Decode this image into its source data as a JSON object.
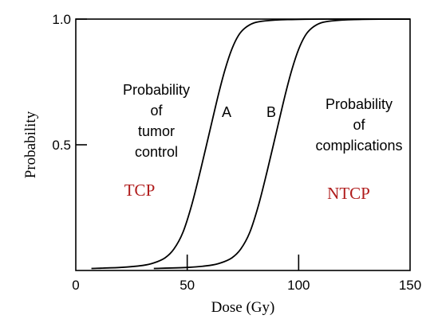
{
  "chart_data": {
    "type": "line",
    "xlabel": "Dose (Gy)",
    "ylabel": "Probability",
    "xlim": [
      0,
      150
    ],
    "ylim": [
      0,
      1.0
    ],
    "x_ticks": [
      0,
      50,
      100,
      150
    ],
    "y_ticks": [
      0.5,
      1.0
    ],
    "x_tick_labels": [
      "0",
      "50",
      "100",
      "150"
    ],
    "y_tick_labels": [
      "0.5",
      "1.0"
    ],
    "grid": false,
    "series": [
      {
        "name": "A",
        "x": [
          7,
          20,
          30,
          35,
          40,
          44,
          48,
          52,
          56,
          60,
          64,
          67,
          70,
          73,
          76,
          80,
          85,
          95,
          110,
          150
        ],
        "y": [
          0.008,
          0.012,
          0.02,
          0.03,
          0.05,
          0.085,
          0.15,
          0.26,
          0.4,
          0.55,
          0.7,
          0.8,
          0.88,
          0.935,
          0.965,
          0.985,
          0.993,
          0.998,
          1.0,
          1.0
        ]
      },
      {
        "name": "B",
        "x": [
          35,
          50,
          60,
          65,
          70,
          74,
          78,
          82,
          86,
          90,
          94,
          97,
          100,
          103,
          106,
          110,
          115,
          125,
          140,
          150
        ],
        "y": [
          0.008,
          0.012,
          0.02,
          0.03,
          0.05,
          0.085,
          0.15,
          0.26,
          0.4,
          0.55,
          0.7,
          0.8,
          0.88,
          0.935,
          0.965,
          0.985,
          0.993,
          0.998,
          1.0,
          1.0
        ]
      }
    ],
    "annotations": {
      "tcp_desc": [
        "Probability",
        "of",
        "tumor",
        "control"
      ],
      "ntcp_desc": [
        "Probability",
        "of",
        "complications"
      ],
      "curve_a": "A",
      "curve_b": "B",
      "tcp": "TCP",
      "ntcp": "NTCP"
    },
    "marker_ticks_x": [
      50,
      100
    ],
    "colors": {
      "curve": "#000000",
      "axis": "#000000",
      "highlight_text": "#b01c1c"
    }
  }
}
